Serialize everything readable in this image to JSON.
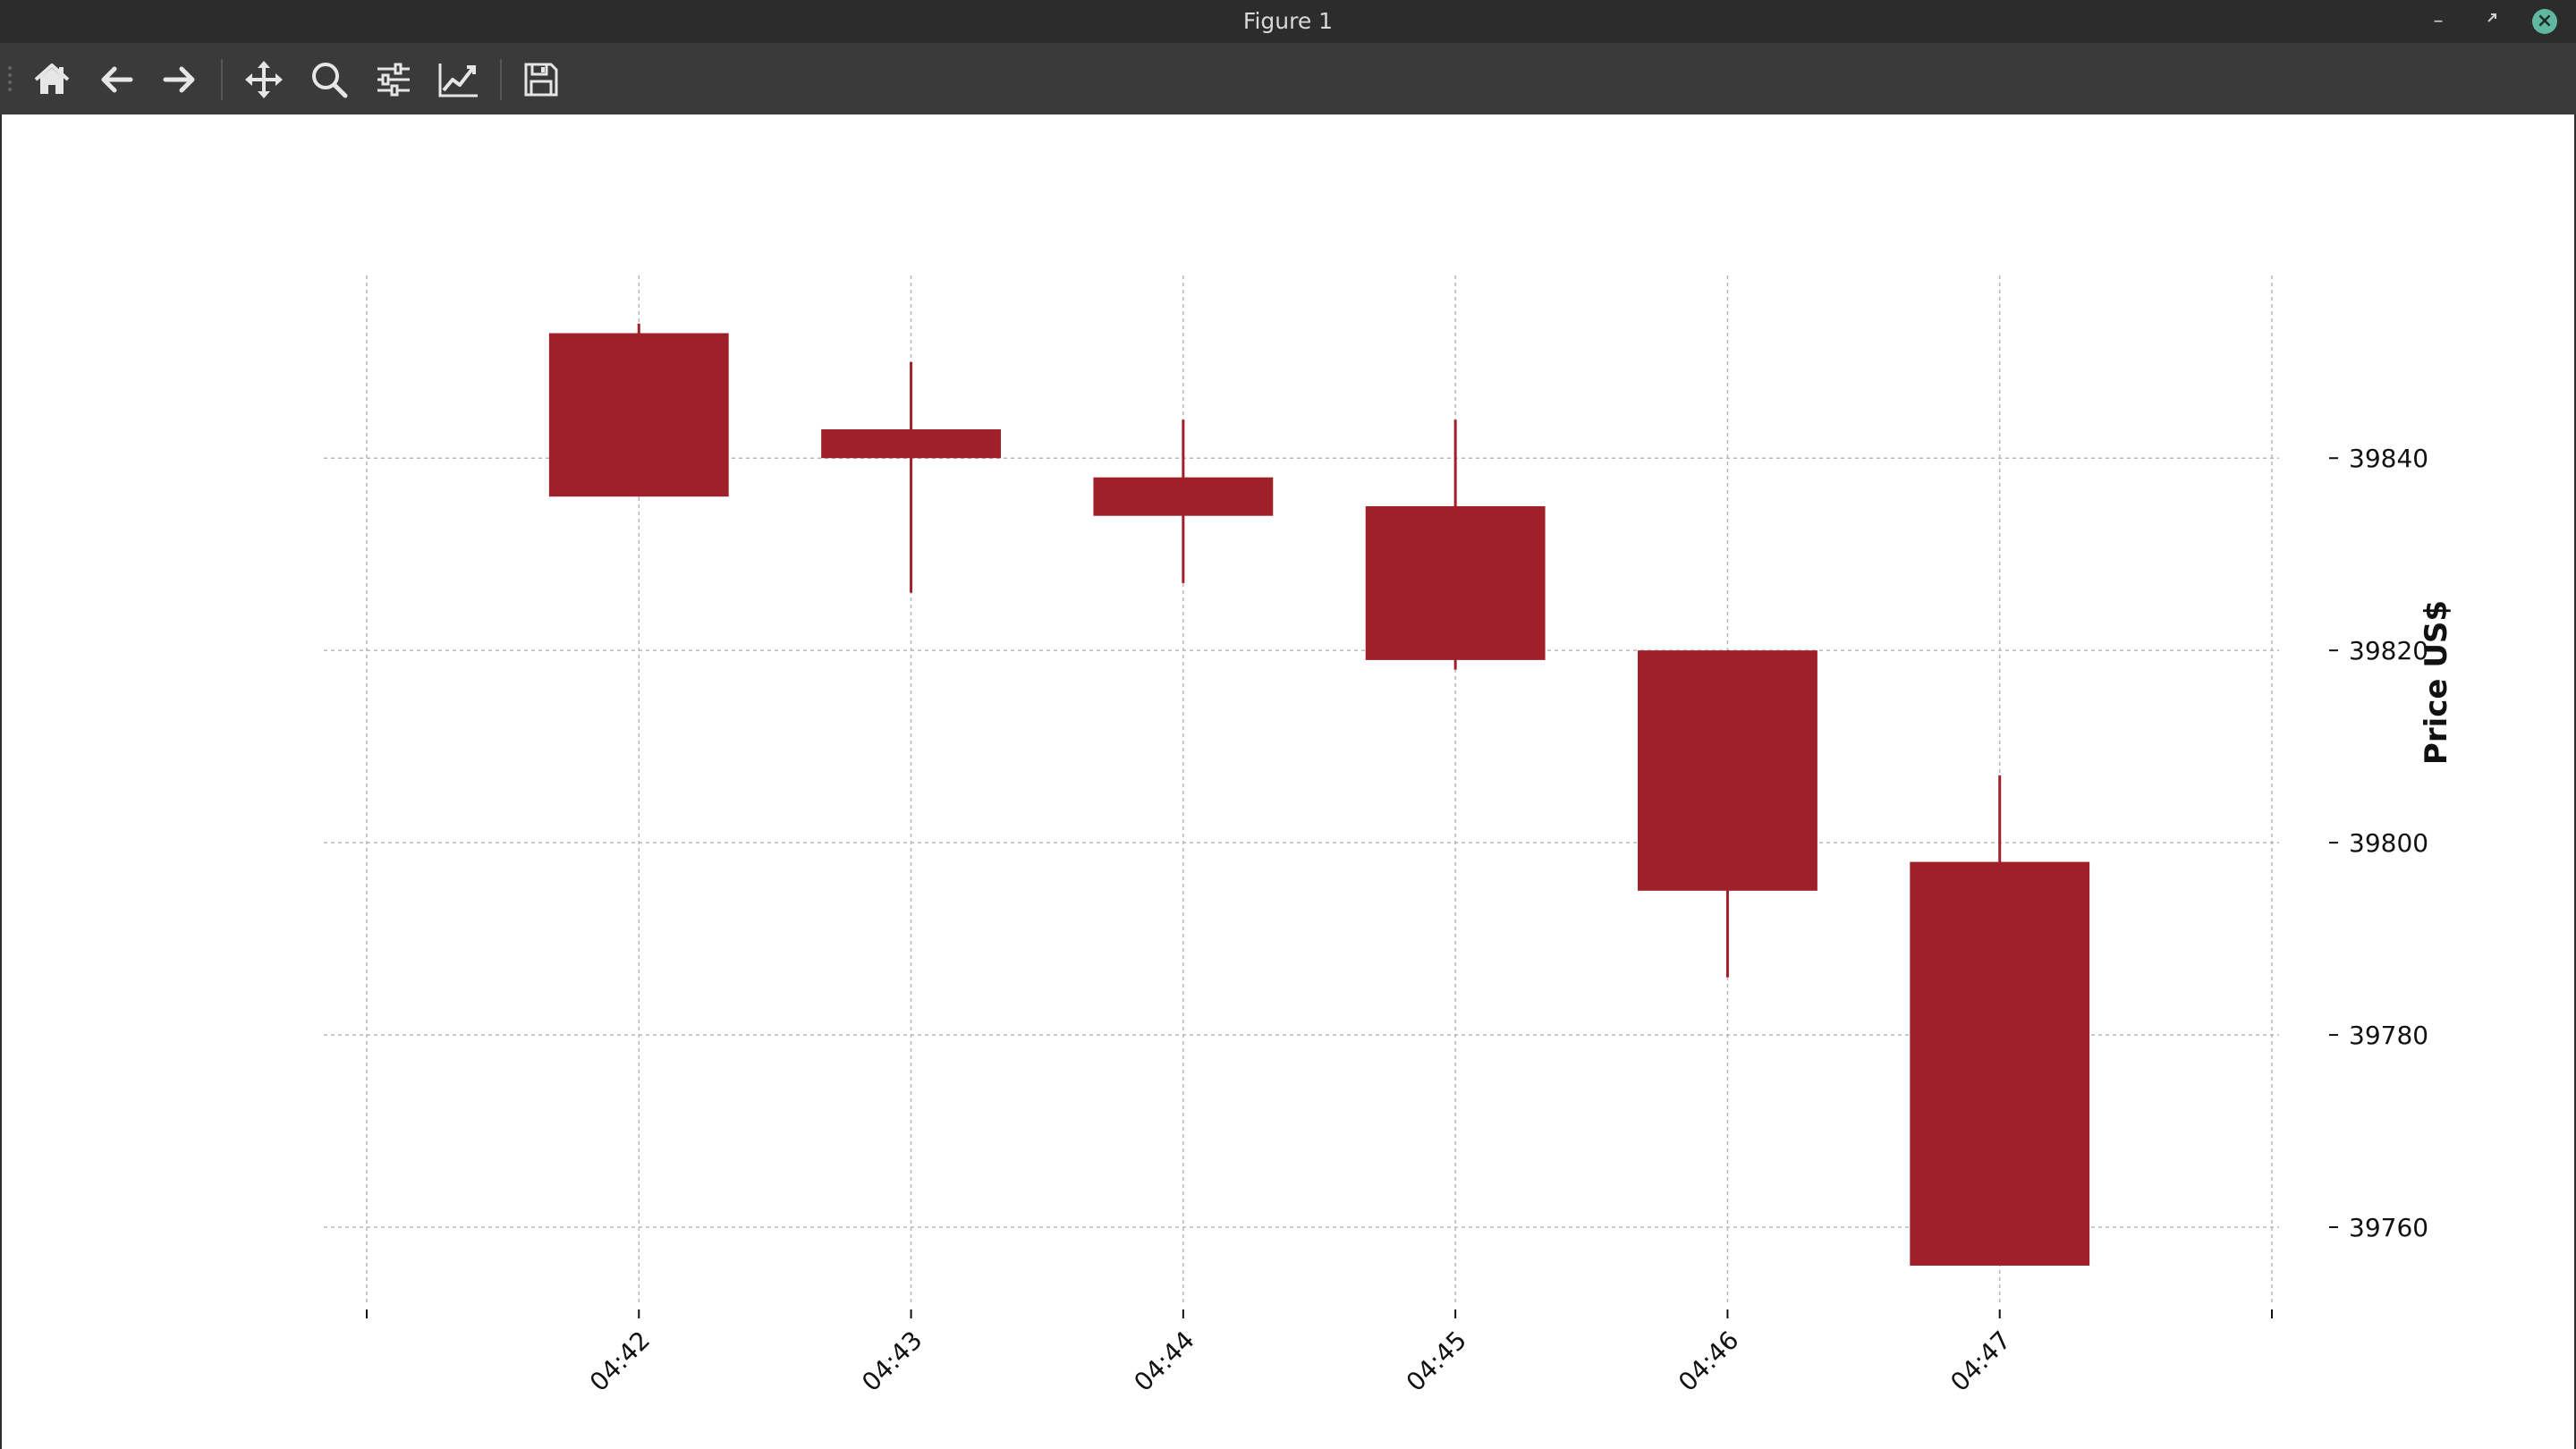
{
  "window": {
    "title": "Figure 1"
  },
  "toolbar": {
    "buttons": [
      {
        "name": "home-icon"
      },
      {
        "name": "back-arrow-icon"
      },
      {
        "name": "forward-arrow-icon"
      },
      {
        "name": "pan-move-icon"
      },
      {
        "name": "zoom-magnifier-icon"
      },
      {
        "name": "configure-subplots-icon"
      },
      {
        "name": "edit-axis-icon"
      },
      {
        "name": "save-floppy-icon"
      }
    ]
  },
  "chart_data": {
    "type": "candlestick",
    "title": "",
    "xlabel": "",
    "ylabel": "Price US$",
    "ylim": [
      39752,
      39859
    ],
    "y_ticks": [
      39760,
      39780,
      39800,
      39820,
      39840
    ],
    "x_ticks": [
      "04:42",
      "04:43",
      "04:44",
      "04:45",
      "04:46",
      "04:47"
    ],
    "grid": true,
    "y_axis_side": "right",
    "candle_color": "#a0202a",
    "candles": [
      {
        "time": "04:42",
        "open": 39853,
        "high": 39854,
        "low": 39836,
        "close": 39836
      },
      {
        "time": "04:43",
        "open": 39843,
        "high": 39850,
        "low": 39826,
        "close": 39840
      },
      {
        "time": "04:44",
        "open": 39838,
        "high": 39844,
        "low": 39827,
        "close": 39834
      },
      {
        "time": "04:45",
        "open": 39835,
        "high": 39844,
        "low": 39818,
        "close": 39819
      },
      {
        "time": "04:46",
        "open": 39820,
        "high": 39820,
        "low": 39786,
        "close": 39795
      },
      {
        "time": "04:47",
        "open": 39798,
        "high": 39807,
        "low": 39756,
        "close": 39756
      }
    ]
  }
}
